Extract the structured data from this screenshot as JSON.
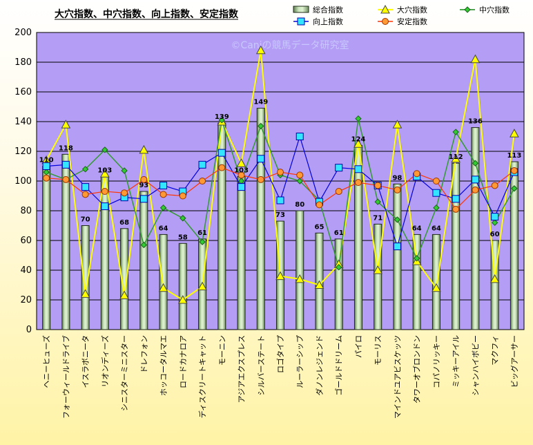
{
  "colors": {
    "plot_bg": "#b49ef5",
    "bar_fill": "#9fbe8e",
    "daiana": "#ffff00",
    "chuana": "#339933",
    "kojo": "#0000dd",
    "antei": "#ff3300",
    "kojo_marker": "#33e5ff",
    "antei_marker": "#ff9933"
  },
  "watermark": "©Caniの競馬データ研究室",
  "chart_data": {
    "type": "bar",
    "title": "大穴指数、中穴指数、向上指数、安定指数",
    "ylim": [
      0,
      200
    ],
    "yticks": [
      0,
      20,
      40,
      60,
      80,
      100,
      120,
      140,
      160,
      180,
      200
    ],
    "grid": true,
    "legend_position": "top-right",
    "categories": [
      "ヘニーヒューズ",
      "フォーウィールドライブ",
      "イスラボニータ",
      "リオンディーズ",
      "シニスターミニスター",
      "ドレフォン",
      "ホッコータルマエ",
      "ロードカナロア",
      "ディスクリートキャット",
      "モーニン",
      "アジアエクスプレス",
      "シルバーステート",
      "ロゴタイプ",
      "ルーラーシップ",
      "ダノンレジェンド",
      "ゴールドドリーム",
      "パイロ",
      "モーリス",
      "マインドユアビスケッツ",
      "タワーオブロンドン",
      "コパノリッキー",
      "ミッキーアイル",
      "シャンハイボビー",
      "マクフィ",
      "ビッグアーサー"
    ],
    "series": [
      {
        "name": "総合指数",
        "kind": "bar",
        "values": [
          110,
          118,
          70,
          103,
          68,
          93,
          64,
          58,
          61,
          139,
          103,
          149,
          73,
          80,
          65,
          61,
          124,
          71,
          98,
          64,
          64,
          112,
          136,
          60,
          113
        ]
      },
      {
        "name": "大穴指数",
        "kind": "line",
        "values": [
          114,
          138,
          24,
          105,
          23,
          121,
          28,
          20,
          29,
          140,
          112,
          188,
          36,
          34,
          30,
          44,
          125,
          40,
          138,
          46,
          28,
          115,
          182,
          34,
          132
        ]
      },
      {
        "name": "中穴指数",
        "kind": "line",
        "values": [
          106,
          101,
          108,
          121,
          107,
          57,
          82,
          75,
          59,
          141,
          100,
          137,
          104,
          100,
          87,
          42,
          142,
          86,
          74,
          48,
          82,
          133,
          112,
          72,
          95
        ]
      },
      {
        "name": "向上指数",
        "kind": "line",
        "values": [
          110,
          111,
          96,
          83,
          89,
          88,
          97,
          93,
          111,
          119,
          96,
          115,
          87,
          130,
          86,
          109,
          108,
          97,
          56,
          103,
          92,
          88,
          101,
          76,
          106
        ]
      },
      {
        "name": "安定指数",
        "kind": "line",
        "values": [
          102,
          101,
          91,
          93,
          92,
          101,
          91,
          90,
          100,
          109,
          104,
          101,
          106,
          104,
          84,
          93,
          99,
          97,
          94,
          105,
          100,
          81,
          94,
          97,
          107
        ]
      }
    ]
  }
}
